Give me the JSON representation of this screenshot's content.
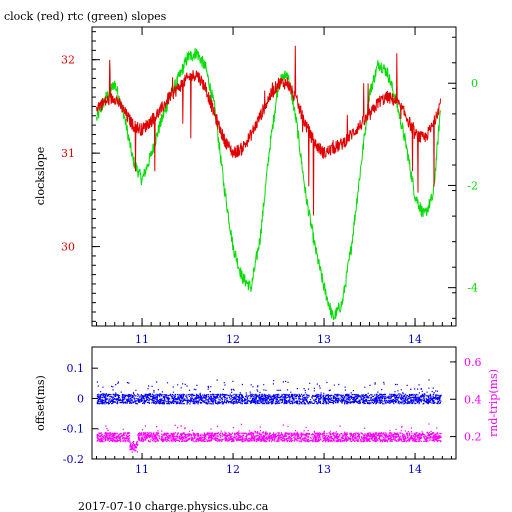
{
  "title": "clock (red) rtc (green) slopes",
  "footer": "2017-07-10 charge.physics.ubc.ca",
  "colors": {
    "clock": "#e00000",
    "rtc": "#00dd00",
    "offset": "#0000ff",
    "roundtrip": "#ff00ff",
    "axis": "#000000",
    "bottom_ticks": "#0000cc"
  },
  "chart_data": [
    {
      "type": "line",
      "title": "clock (red) rtc (green) slopes",
      "ylabel": "clockslope",
      "xlim": [
        10.45,
        14.45
      ],
      "x_ticks": [
        "11",
        "12",
        "13",
        "14"
      ],
      "ylim_left": [
        29.15,
        32.35
      ],
      "y_ticks_left": [
        "30",
        "31",
        "32"
      ],
      "ylim_right": [
        -4.75,
        1.1
      ],
      "y_ticks_right": [
        "-4",
        "-2",
        "0"
      ],
      "grid": false,
      "series": [
        {
          "name": "clock",
          "axis": "left",
          "x": [
            10.5,
            10.6,
            10.7,
            10.8,
            10.9,
            11.0,
            11.1,
            11.2,
            11.3,
            11.4,
            11.5,
            11.6,
            11.7,
            11.8,
            11.9,
            12.0,
            12.1,
            12.2,
            12.3,
            12.4,
            12.5,
            12.6,
            12.7,
            12.8,
            12.9,
            13.0,
            13.1,
            13.2,
            13.3,
            13.4,
            13.5,
            13.6,
            13.7,
            13.8,
            13.9,
            14.0,
            14.1,
            14.2,
            14.28
          ],
          "y": [
            31.5,
            31.55,
            31.6,
            31.45,
            31.3,
            31.25,
            31.35,
            31.45,
            31.6,
            31.7,
            31.8,
            31.85,
            31.7,
            31.4,
            31.15,
            31.0,
            31.05,
            31.2,
            31.4,
            31.6,
            31.75,
            31.75,
            31.55,
            31.3,
            31.1,
            31.0,
            31.05,
            31.1,
            31.2,
            31.3,
            31.4,
            31.55,
            31.6,
            31.55,
            31.4,
            31.2,
            31.15,
            31.3,
            31.55
          ]
        },
        {
          "name": "rtc",
          "axis": "right",
          "x": [
            10.5,
            10.6,
            10.7,
            10.8,
            10.9,
            11.0,
            11.1,
            11.2,
            11.3,
            11.4,
            11.5,
            11.6,
            11.7,
            11.8,
            11.9,
            12.0,
            12.1,
            12.2,
            12.3,
            12.4,
            12.5,
            12.6,
            12.7,
            12.8,
            12.9,
            13.0,
            13.1,
            13.2,
            13.3,
            13.4,
            13.5,
            13.6,
            13.7,
            13.8,
            13.9,
            14.0,
            14.1,
            14.2,
            14.28
          ],
          "y": [
            -0.7,
            -0.3,
            0.0,
            -0.6,
            -1.5,
            -1.9,
            -1.4,
            -0.8,
            -0.3,
            0.1,
            0.5,
            0.6,
            0.3,
            -0.5,
            -2.0,
            -3.2,
            -3.8,
            -4.0,
            -3.0,
            -1.3,
            0.0,
            0.2,
            -0.8,
            -2.2,
            -3.2,
            -4.0,
            -4.6,
            -4.3,
            -3.2,
            -1.7,
            -0.2,
            0.4,
            0.2,
            -0.4,
            -1.2,
            -2.2,
            -2.6,
            -2.2,
            -0.5
          ]
        }
      ]
    },
    {
      "type": "scatter",
      "ylabel_left": "offset(ms)",
      "ylabel_right": "rnd-trip(ms)",
      "xlim": [
        10.45,
        14.45
      ],
      "x_ticks": [
        "11",
        "12",
        "13",
        "14"
      ],
      "ylim_left": [
        -0.2,
        0.17
      ],
      "y_ticks_left": [
        "0.1",
        "0",
        "-0.1",
        "-0.2"
      ],
      "ylim_right": [
        0.08,
        0.68
      ],
      "y_ticks_right": [
        "0.6",
        "0.4",
        "0.2"
      ],
      "series": [
        {
          "name": "offset",
          "axis": "left",
          "center": 0.0,
          "spread": 0.02
        },
        {
          "name": "rnd-trip",
          "axis": "right",
          "center": 0.2,
          "spread": 0.03
        }
      ]
    }
  ]
}
